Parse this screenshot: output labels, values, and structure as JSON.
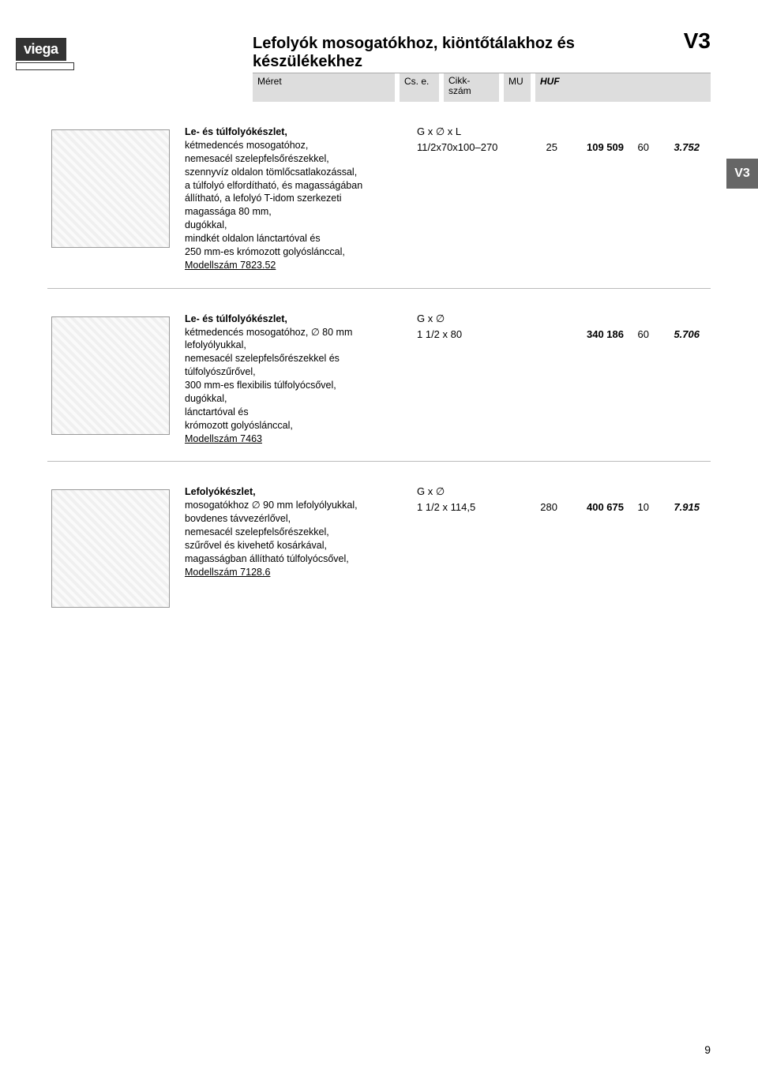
{
  "brand": "viega",
  "page_title": "Lefolyók mosogatókhoz, kiöntőtálakhoz és készülékekhez",
  "page_code": "V3",
  "side_tab": "V3",
  "col_headers": {
    "meret": "Méret",
    "cse": "Cs. e.",
    "cikk_l1": "Cikk-",
    "cikk_l2": "szám",
    "mu": "MU",
    "huf": "HUF"
  },
  "products": [
    {
      "title": "Le- és túlfolyókészlet,",
      "lines": [
        "kétmedencés mosogatóhoz,",
        "nemesacél szelepfelsőrészekkel,",
        "szennyvíz oldalon tömlőcsatlakozással,",
        "a túlfolyó elfordítható, és magasságában",
        "állítható, a lefolyó T-idom szerkezeti",
        "magassága 80 mm,",
        "dugókkal,",
        "mindkét oldalon lánctartóval és",
        "250 mm-es krómozott golyóslánccal,"
      ],
      "model": "Modellszám 7823.52",
      "data_header": "G x ∅ x L",
      "row": {
        "size": "11/2x70x100–270",
        "qty": "25",
        "art": "109 509",
        "mu": "60",
        "price": "3.752"
      }
    },
    {
      "title": "Le- és túlfolyókészlet,",
      "lines": [
        "kétmedencés mosogatóhoz, ∅ 80 mm",
        "lefolyólyukkal,",
        "nemesacél szelepfelsőrészekkel és",
        "túlfolyószűrővel,",
        "300 mm-es flexibilis túlfolyócsővel,",
        "dugókkal,",
        "lánctartóval és",
        "krómozott golyóslánccal,"
      ],
      "model": "Modellszám 7463",
      "data_header": "G x ∅",
      "row": {
        "size": "1 1/2 x 80",
        "qty": "",
        "art": "340 186",
        "mu": "60",
        "price": "5.706"
      }
    },
    {
      "title": "Lefolyókészlet,",
      "lines": [
        "mosogatókhoz ∅ 90 mm lefolyólyukkal,",
        "bovdenes távvezérlővel,",
        "nemesacél szelepfelsőrészekkel,",
        "szűrővel és kivehető kosárkával,",
        "magasságban állítható túlfolyócsővel,"
      ],
      "model": "Modellszám 7128.6",
      "data_header": "G x ∅",
      "row": {
        "size": "1 1/2 x 114,5",
        "qty": "280",
        "art": "400 675",
        "mu": "10",
        "price": "7.915"
      }
    }
  ],
  "page_number": "9"
}
